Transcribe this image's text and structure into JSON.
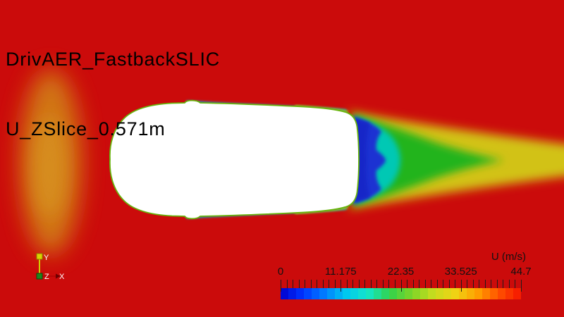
{
  "annotations": {
    "title_line1": "DrivAER_FastbackSLIC",
    "title_line2": "U_ZSlice_0.571m"
  },
  "legend": {
    "title": "U (m/s)",
    "tick_labels": [
      "0",
      "11.175",
      "22.35",
      "33.525",
      "44.7"
    ],
    "range_min": 0,
    "range_max": 44.7,
    "minor_tick_count": 41,
    "segments": 31,
    "colormap": [
      "#0000cd",
      "#0033ff",
      "#007dff",
      "#00c8f0",
      "#14e6c8",
      "#32d24b",
      "#7dd628",
      "#c8dc1e",
      "#f0d214",
      "#ffa000",
      "#ff5000",
      "#f51400"
    ]
  },
  "axes_widget": {
    "x_label": "X",
    "y_label": "Y",
    "z_label": "Z"
  },
  "field": {
    "freestream_color": "#cb0b0b",
    "car_color": "#ffffff",
    "stagnation_orange": "#d28214",
    "stagnation_core": "#d89420",
    "wake_yellow": "#d2c214",
    "wake_green": "#22b41e",
    "wake_cyan": "#00c8b4",
    "wake_blue": "#1e32d2",
    "wake_deep_blue": "#1426c8",
    "mirror_cyan": "#00b4d2",
    "mirror_blue": "#2866e6",
    "rear_yellow_green": "#96c81e"
  }
}
